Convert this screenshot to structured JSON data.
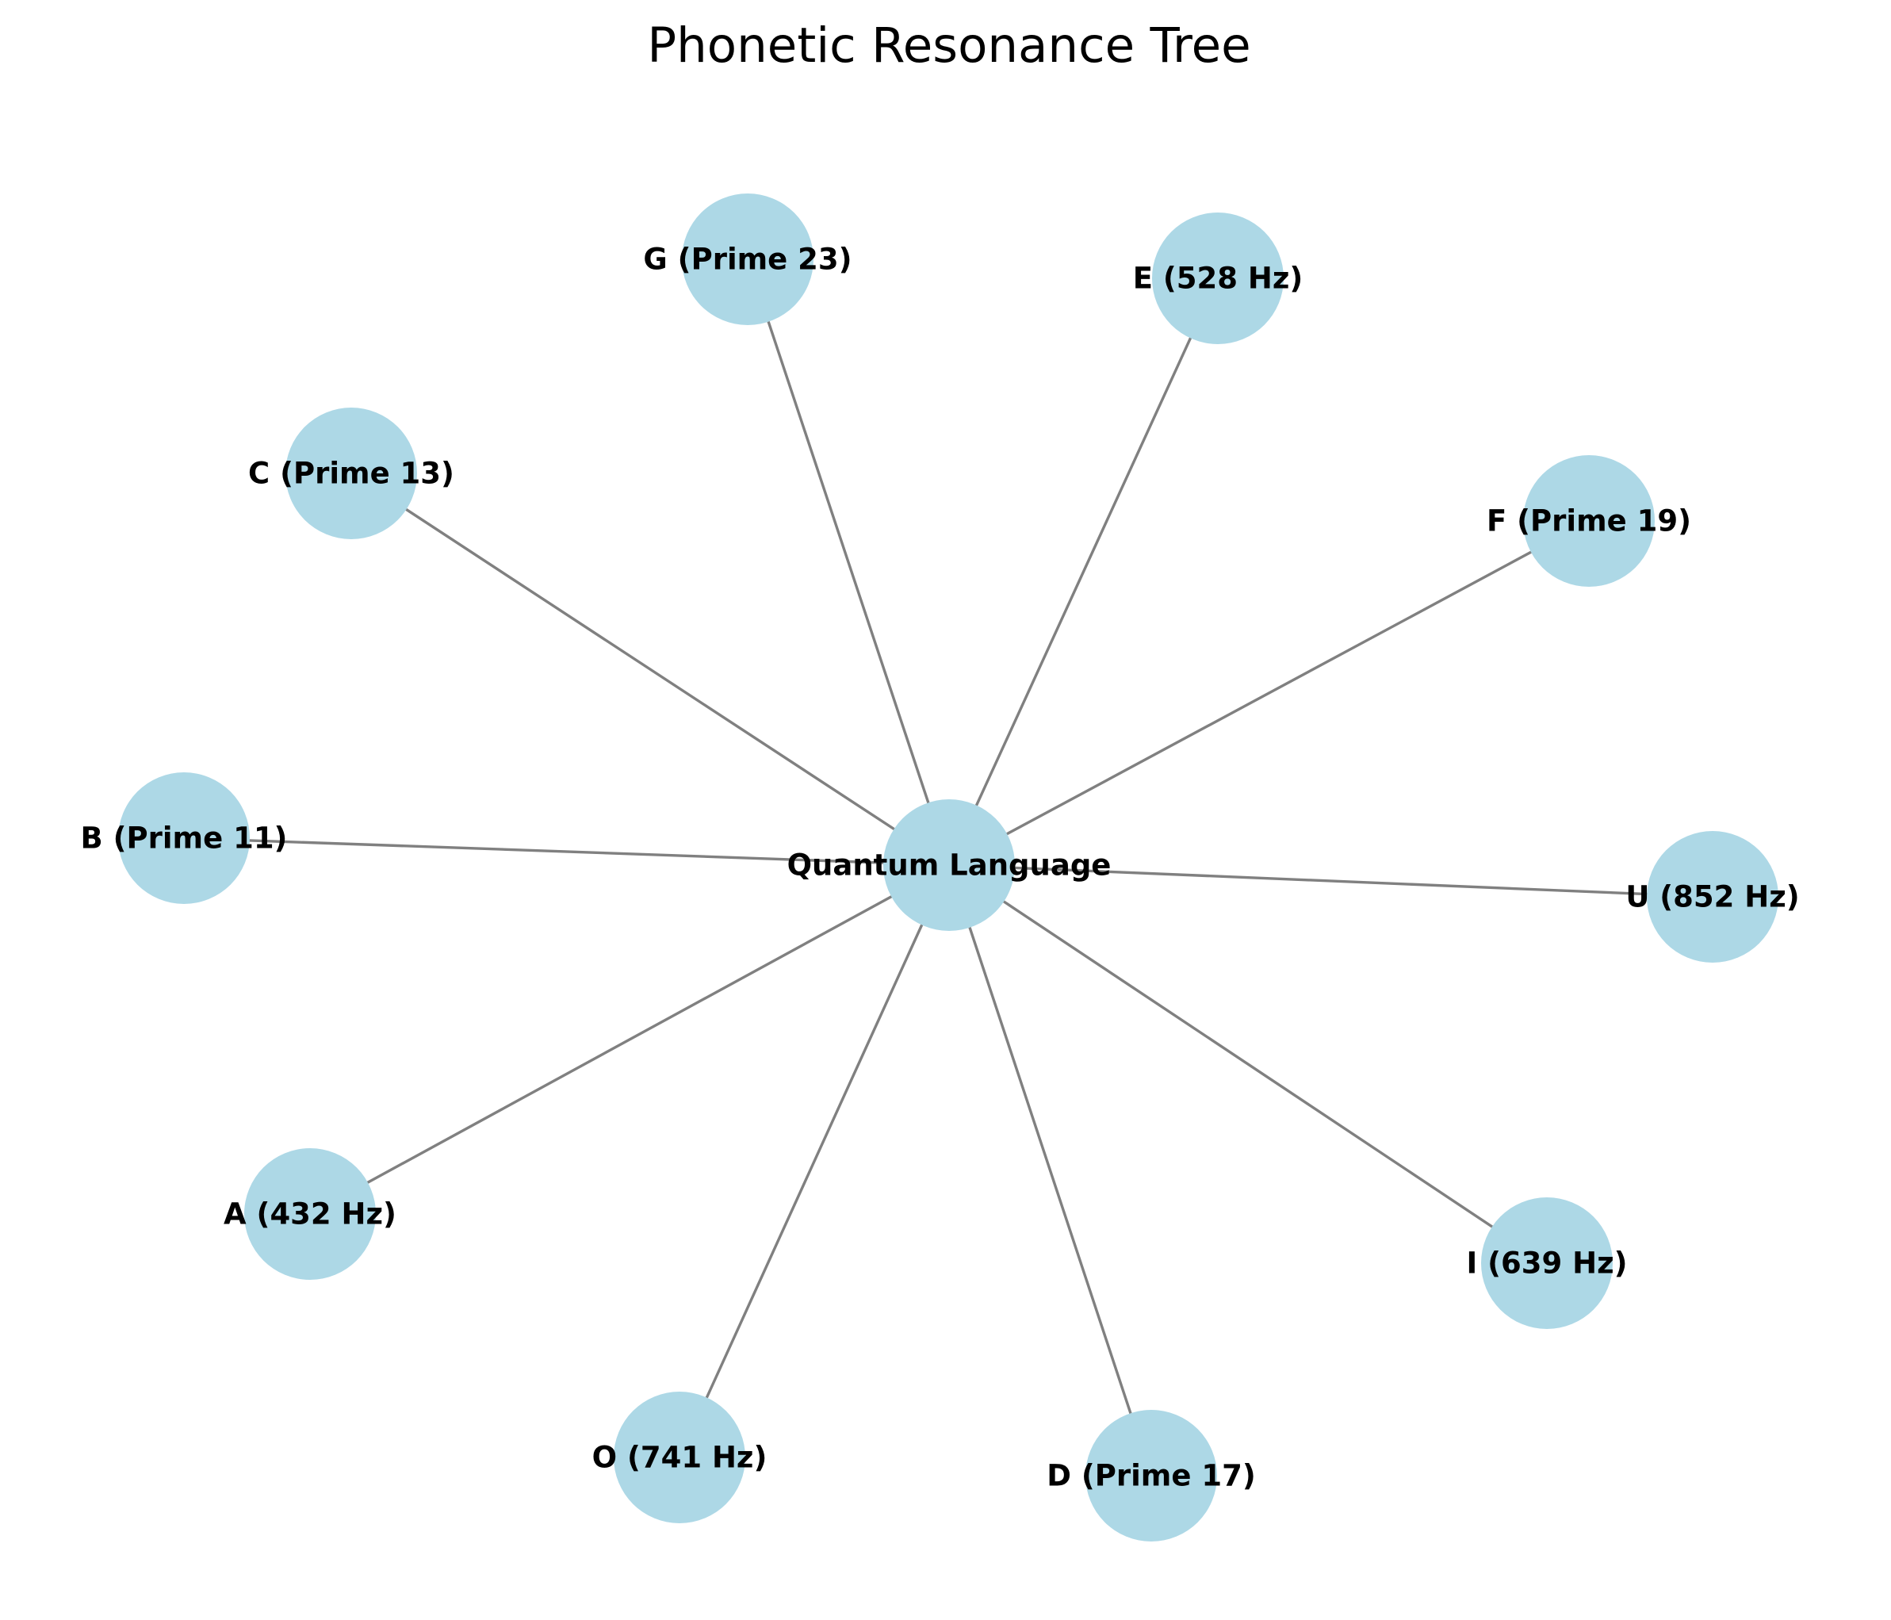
{
  "title": "Phonetic Resonance Tree",
  "colors": {
    "node_fill": "#add8e6",
    "edge": "#808080",
    "label": "#000000",
    "background": "#ffffff"
  },
  "diagram": {
    "type": "star-graph",
    "center": {
      "id": "center",
      "label": "Quantum Language"
    },
    "nodes": [
      {
        "id": "G",
        "label": "G (Prime 23)"
      },
      {
        "id": "E",
        "label": "E (528 Hz)"
      },
      {
        "id": "C",
        "label": "C (Prime 13)"
      },
      {
        "id": "F",
        "label": "F (Prime 19)"
      },
      {
        "id": "B",
        "label": "B (Prime 11)"
      },
      {
        "id": "U",
        "label": "U (852 Hz)"
      },
      {
        "id": "A",
        "label": "A (432 Hz)"
      },
      {
        "id": "I",
        "label": "I (639 Hz)"
      },
      {
        "id": "O",
        "label": "O (741 Hz)"
      },
      {
        "id": "D",
        "label": "D (Prime 17)"
      }
    ],
    "edges": [
      {
        "from": "center",
        "to": "G"
      },
      {
        "from": "center",
        "to": "E"
      },
      {
        "from": "center",
        "to": "C"
      },
      {
        "from": "center",
        "to": "F"
      },
      {
        "from": "center",
        "to": "B"
      },
      {
        "from": "center",
        "to": "U"
      },
      {
        "from": "center",
        "to": "A"
      },
      {
        "from": "center",
        "to": "I"
      },
      {
        "from": "center",
        "to": "O"
      },
      {
        "from": "center",
        "to": "D"
      }
    ]
  }
}
